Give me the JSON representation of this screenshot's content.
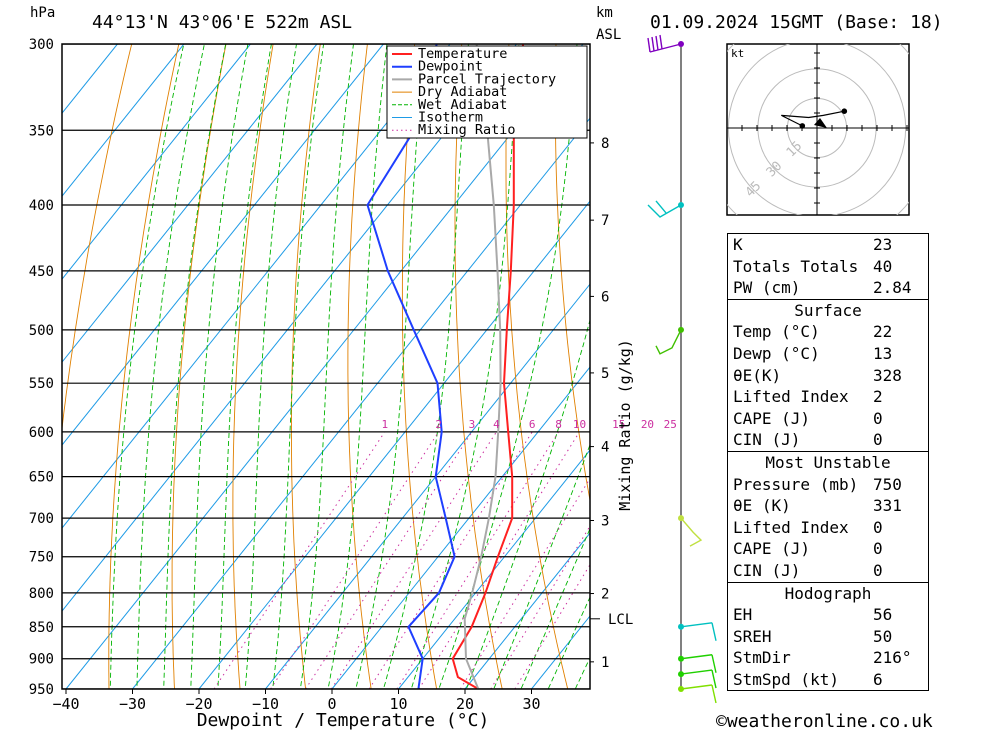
{
  "header": {
    "pressure_unit": "hPa",
    "location": "44°13'N 43°06'E 522m ASL",
    "km_label": "km",
    "asl_label": "ASL",
    "datetime": "01.09.2024 15GMT (Base: 18)"
  },
  "chart_data": {
    "type": "skew-t log-p",
    "xlabel": "Dewpoint / Temperature (°C)",
    "ylabel": "hPa",
    "right_axis_label": "Mixing Ratio (g/kg)",
    "pressure_levels": [
      300,
      350,
      400,
      450,
      500,
      550,
      600,
      650,
      700,
      750,
      800,
      850,
      900,
      950
    ],
    "temperature_ticks": [
      -40,
      -30,
      -20,
      -10,
      0,
      10,
      20,
      30
    ],
    "height_ticks_km": [
      {
        "km": "1",
        "p": 905
      },
      {
        "km": "2",
        "p": 801
      },
      {
        "km": "3",
        "p": 703
      },
      {
        "km": "4",
        "p": 616
      },
      {
        "km": "5",
        "p": 540
      },
      {
        "km": "6",
        "p": 471
      },
      {
        "km": "7",
        "p": 411
      },
      {
        "km": "8",
        "p": 358
      }
    ],
    "lcl": {
      "label": "LCL",
      "p": 838
    },
    "mixing_ratio_lines": [
      "1",
      "2",
      "3",
      "4",
      "6",
      "8",
      "10",
      "15",
      "20",
      "25"
    ],
    "legend": [
      "Temperature",
      "Dewpoint",
      "Parcel Trajectory",
      "Dry Adiabat",
      "Wet Adiabat",
      "Isotherm",
      "Mixing Ratio"
    ],
    "colors": {
      "temperature": "#ff2020",
      "dewpoint": "#1f3fff",
      "parcel": "#a9a9a9",
      "dry_adiabat": "#e08000",
      "wet_adiabat": "#00b400",
      "isotherm": "#1e9be6",
      "mixing_ratio": "#cc2fa0"
    },
    "series": [
      {
        "name": "Temperature",
        "points": [
          {
            "p": 950,
            "t": 22
          },
          {
            "p": 930,
            "t": 17.5
          },
          {
            "p": 900,
            "t": 14.5
          },
          {
            "p": 850,
            "t": 13.5
          },
          {
            "p": 800,
            "t": 11.5
          },
          {
            "p": 750,
            "t": 9
          },
          {
            "p": 700,
            "t": 6.5
          },
          {
            "p": 650,
            "t": 1.5
          },
          {
            "p": 600,
            "t": -4.5
          },
          {
            "p": 550,
            "t": -11
          },
          {
            "p": 500,
            "t": -17
          },
          {
            "p": 450,
            "t": -23.5
          },
          {
            "p": 400,
            "t": -31
          },
          {
            "p": 350,
            "t": -40
          },
          {
            "p": 300,
            "t": -49
          }
        ]
      },
      {
        "name": "Dewpoint",
        "points": [
          {
            "p": 950,
            "t": 13
          },
          {
            "p": 900,
            "t": 10
          },
          {
            "p": 850,
            "t": 4
          },
          {
            "p": 800,
            "t": 4.5
          },
          {
            "p": 750,
            "t": 2.5
          },
          {
            "p": 700,
            "t": -3.5
          },
          {
            "p": 650,
            "t": -10
          },
          {
            "p": 600,
            "t": -14.5
          },
          {
            "p": 550,
            "t": -21
          },
          {
            "p": 500,
            "t": -31
          },
          {
            "p": 450,
            "t": -42
          },
          {
            "p": 400,
            "t": -53
          },
          {
            "p": 350,
            "t": -55
          },
          {
            "p": 300,
            "t": -62
          }
        ]
      },
      {
        "name": "Parcel Trajectory",
        "points": [
          {
            "p": 950,
            "t": 22
          },
          {
            "p": 900,
            "t": 16.5
          },
          {
            "p": 838,
            "t": 11.5
          },
          {
            "p": 800,
            "t": 9.5
          },
          {
            "p": 750,
            "t": 6.5
          },
          {
            "p": 700,
            "t": 3
          },
          {
            "p": 650,
            "t": -1
          },
          {
            "p": 600,
            "t": -6
          },
          {
            "p": 550,
            "t": -11.5
          },
          {
            "p": 500,
            "t": -18
          },
          {
            "p": 450,
            "t": -25.5
          },
          {
            "p": 400,
            "t": -34
          },
          {
            "p": 350,
            "t": -44
          },
          {
            "p": 300,
            "t": -56
          }
        ]
      }
    ],
    "wind_barbs_kt": [
      {
        "p": 950,
        "speed": 10
      },
      {
        "p": 925,
        "speed": 10
      },
      {
        "p": 900,
        "speed": 10
      },
      {
        "p": 850,
        "speed": 10
      },
      {
        "p": 700,
        "speed": 10
      },
      {
        "p": 500,
        "speed": 10
      },
      {
        "p": 400,
        "speed": 15
      },
      {
        "p": 300,
        "speed": 20
      }
    ],
    "hodograph": {
      "unit": "kt",
      "rings": [
        "15",
        "30",
        "45"
      ],
      "points": [
        {
          "u": 13,
          "v": 8
        },
        {
          "u": 3,
          "v": 6
        },
        {
          "u": -4,
          "v": 5
        },
        {
          "u": -17,
          "v": 6
        },
        {
          "u": -7,
          "v": 1
        }
      ]
    }
  },
  "indices": {
    "top": [
      {
        "label": "K",
        "value": "23"
      },
      {
        "label": "Totals Totals",
        "value": "40"
      },
      {
        "label": "PW (cm)",
        "value": "2.84"
      }
    ],
    "surface": {
      "title": "Surface",
      "rows": [
        {
          "label": "Temp (°C)",
          "value": "22"
        },
        {
          "label": "Dewp (°C)",
          "value": "13"
        },
        {
          "label": "θE(K)",
          "value": "328"
        },
        {
          "label": "Lifted Index",
          "value": "2"
        },
        {
          "label": "CAPE (J)",
          "value": "0"
        },
        {
          "label": "CIN (J)",
          "value": "0"
        }
      ]
    },
    "most_unstable": {
      "title": "Most Unstable",
      "rows": [
        {
          "label": "Pressure (mb)",
          "value": "750"
        },
        {
          "label": "θE (K)",
          "value": "331"
        },
        {
          "label": "Lifted Index",
          "value": "0"
        },
        {
          "label": "CAPE (J)",
          "value": "0"
        },
        {
          "label": "CIN (J)",
          "value": "0"
        }
      ]
    },
    "hodograph": {
      "title": "Hodograph",
      "rows": [
        {
          "label": "EH",
          "value": "56"
        },
        {
          "label": "SREH",
          "value": "50"
        },
        {
          "label": "StmDir",
          "value": "216°"
        },
        {
          "label": "StmSpd (kt)",
          "value": "6"
        }
      ]
    }
  },
  "footer": {
    "copyright": "©weatheronline.co.uk"
  }
}
